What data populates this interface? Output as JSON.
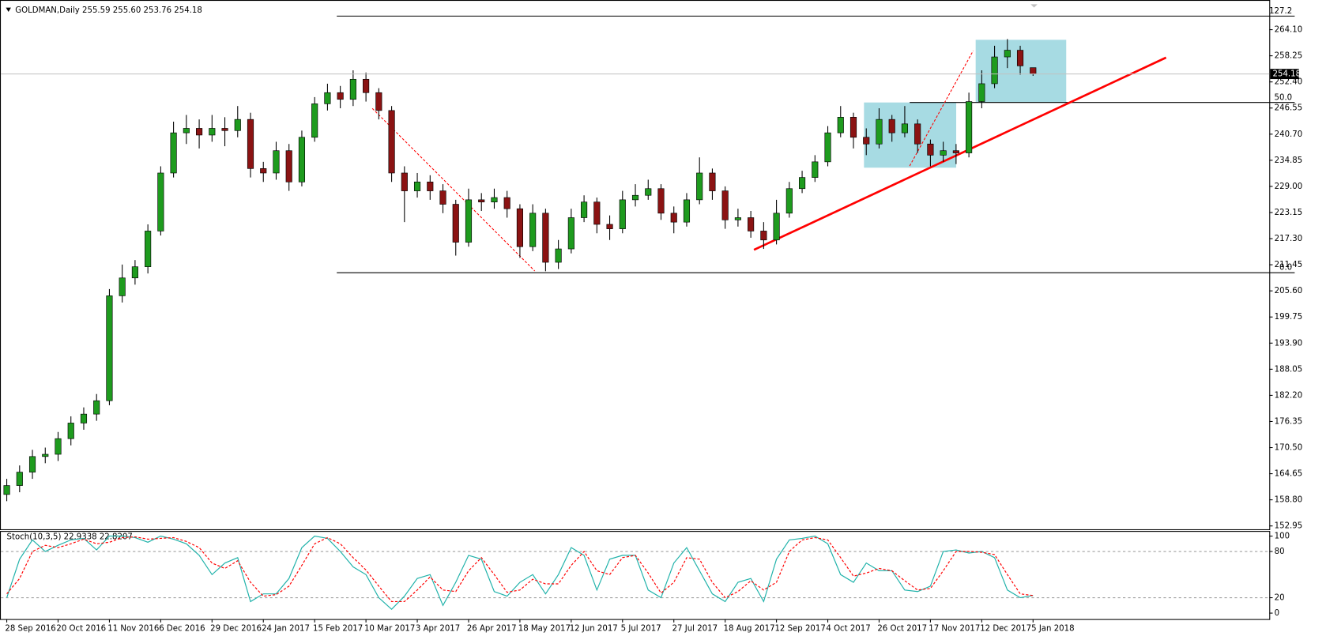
{
  "chart_data": [
    {
      "type": "candlestick",
      "title": "GOLDMAN,Daily  255.59 255.60 253.76 254.18",
      "categories": [
        "28 Sep 2016",
        null,
        null,
        null,
        "20 Oct 2016",
        null,
        null,
        null,
        "11 Nov 2016",
        null,
        null,
        null,
        "6 Dec 2016",
        null,
        null,
        null,
        "29 Dec 2016",
        null,
        null,
        null,
        "24 Jan 2017",
        null,
        null,
        null,
        "15 Feb 2017",
        null,
        null,
        null,
        "10 Mar 2017",
        null,
        null,
        null,
        "3 Apr 2017",
        null,
        null,
        null,
        "26 Apr 2017",
        null,
        null,
        null,
        "18 May 2017",
        null,
        null,
        null,
        "12 Jun 2017",
        null,
        null,
        null,
        "5 Jul 2017",
        null,
        null,
        null,
        "27 Jul 2017",
        null,
        null,
        null,
        "18 Aug 2017",
        null,
        null,
        null,
        "12 Sep 2017",
        null,
        null,
        null,
        "4 Oct 2017",
        null,
        null,
        null,
        "26 Oct 2017",
        null,
        null,
        null,
        "17 Nov 2017",
        null,
        null,
        null,
        "12 Dec 2017",
        null,
        null,
        null,
        "5 Jan 2018"
      ],
      "open": [
        160,
        162,
        165,
        168.5,
        169,
        172.5,
        176,
        178,
        181,
        204.5,
        208.5,
        211,
        219,
        232,
        241,
        242,
        240.5,
        242,
        241.5,
        244,
        233,
        232,
        237,
        230,
        240,
        247.5,
        250,
        248.5,
        253,
        250,
        246,
        232,
        228,
        230,
        228,
        225,
        216.5,
        226,
        225.5,
        226.5,
        224,
        215.5,
        223,
        212,
        215,
        222,
        225.5,
        220.5,
        219.5,
        226,
        227,
        228.5,
        223,
        221,
        226,
        232,
        228,
        221.5,
        222,
        219,
        217,
        223,
        228.5,
        231,
        234.5,
        241,
        244.5,
        240,
        238.5,
        244,
        241,
        243,
        238.5,
        236,
        237,
        236.5,
        248,
        252,
        258,
        259.5,
        255.59
      ],
      "high": [
        163.5,
        166.5,
        170,
        170.5,
        174,
        177.5,
        179.5,
        182.5,
        206,
        211.5,
        212.5,
        220.5,
        233.5,
        243.5,
        245,
        244,
        245,
        244.5,
        247,
        245.5,
        234.5,
        239,
        238.5,
        241.5,
        249,
        252,
        251.5,
        255,
        254.5,
        251,
        247,
        233.5,
        232,
        231.5,
        229.5,
        226,
        228.5,
        227.5,
        228.5,
        228,
        225,
        225,
        224,
        217,
        224,
        227,
        226.5,
        222.5,
        228,
        229.5,
        230.5,
        229.5,
        224.5,
        227.5,
        235.5,
        233,
        229,
        224,
        223.5,
        221,
        226,
        230,
        232.5,
        236,
        242.5,
        247,
        245.5,
        242,
        246.5,
        245,
        247,
        244,
        239.5,
        239,
        238.5,
        250,
        255,
        260.5,
        262,
        260.5,
        255.6
      ],
      "low": [
        158.5,
        160.5,
        163.5,
        167,
        167.5,
        171,
        174.5,
        176.5,
        180,
        203,
        207,
        209.5,
        218,
        231,
        238.5,
        237.5,
        239,
        238,
        240,
        231,
        230,
        230.5,
        228,
        229,
        239,
        246,
        246.5,
        247,
        248,
        244,
        230,
        221,
        226.5,
        226,
        223,
        213.5,
        215.5,
        223.5,
        224,
        222,
        213,
        214.5,
        210,
        210.5,
        214,
        221,
        218.5,
        217,
        218.5,
        224.5,
        226,
        221.5,
        218.5,
        220,
        225,
        226,
        219.5,
        220,
        217.5,
        215,
        216,
        222,
        227.5,
        230,
        233.5,
        240,
        237.5,
        236,
        237.5,
        239,
        240,
        236.5,
        233.5,
        234.5,
        234,
        235.5,
        246.5,
        251,
        255.5,
        254,
        253.76
      ],
      "close": [
        162,
        165,
        168.5,
        169,
        172.5,
        176,
        178,
        181,
        204.5,
        208.5,
        211,
        219,
        232,
        241,
        242,
        240.5,
        242,
        241.5,
        244,
        233,
        232,
        237,
        230,
        240,
        247.5,
        250,
        248.5,
        253,
        250,
        246,
        232,
        228,
        230,
        228,
        225,
        216.5,
        226,
        225.5,
        226.5,
        224,
        215.5,
        223,
        212,
        215,
        222,
        225.5,
        220.5,
        219.5,
        226,
        227,
        228.5,
        223,
        221,
        226,
        232,
        228,
        221.5,
        222,
        219,
        217,
        223,
        228.5,
        231,
        234.5,
        241,
        244.5,
        240,
        238.5,
        244,
        241,
        243,
        238.5,
        236,
        237,
        236.5,
        248,
        252,
        258,
        259.5,
        256,
        254.18
      ],
      "up_color": "#1e9b1e",
      "down_color": "#8b1313",
      "wick_color": "#000000",
      "ylim": [
        152.2,
        269.8
      ],
      "yticks": [
        {
          "value": 264.1,
          "label": "264.10"
        },
        258.25,
        {
          "value": 252.4,
          "label": "252.40"
        },
        246.55,
        {
          "value": 240.7,
          "label": "240.70"
        },
        234.85,
        {
          "value": 229,
          "label": "229.00"
        },
        223.15,
        {
          "value": 217.3,
          "label": "217.30"
        },
        211.45,
        {
          "value": 205.6,
          "label": "205.60"
        },
        199.75,
        {
          "value": 193.9,
          "label": "193.90"
        },
        188.05,
        {
          "value": 182.2,
          "label": "182.20"
        },
        176.35,
        {
          "value": 170.5,
          "label": "170.50"
        },
        164.65,
        {
          "value": 158.8,
          "label": "158.80"
        },
        152.95
      ],
      "annotations": [
        "127.2",
        "50.0",
        "0.0"
      ]
    },
    {
      "type": "line",
      "title": "Stoch(10,3,5) 22.9338 22.8207",
      "series": [
        {
          "color": "#20b2aa",
          "values": [
            20,
            70,
            95,
            80,
            88,
            95,
            97,
            82,
            100,
            100,
            98,
            92,
            100,
            96,
            90,
            75,
            50,
            65,
            72,
            15,
            25,
            25,
            45,
            85,
            100,
            97,
            80,
            60,
            50,
            20,
            5,
            22,
            45,
            50,
            10,
            40,
            75,
            70,
            28,
            22,
            40,
            50,
            25,
            50,
            85,
            75,
            30,
            70,
            75,
            75,
            30,
            20,
            65,
            85,
            55,
            25,
            15,
            40,
            45,
            15,
            70,
            95,
            97,
            100,
            90,
            50,
            40,
            65,
            55,
            55,
            30,
            28,
            35,
            80,
            82,
            78,
            80,
            72,
            30,
            20,
            22.9338
          ]
        },
        {
          "color": "#ff0000",
          "dashed": true,
          "values": [
            25,
            45,
            80,
            88,
            85,
            90,
            96,
            90,
            92,
            98,
            99,
            96,
            97,
            98,
            93,
            85,
            65,
            58,
            68,
            40,
            22,
            24,
            35,
            62,
            90,
            98,
            90,
            72,
            56,
            35,
            15,
            15,
            30,
            47,
            30,
            28,
            55,
            72,
            50,
            27,
            30,
            44,
            38,
            38,
            62,
            80,
            55,
            50,
            72,
            75,
            52,
            26,
            40,
            72,
            70,
            40,
            20,
            28,
            42,
            30,
            40,
            80,
            95,
            98,
            95,
            72,
            48,
            52,
            58,
            55,
            42,
            30,
            32,
            55,
            80,
            80,
            79,
            76,
            50,
            25,
            22.8207
          ]
        }
      ],
      "ylim": [
        -7.7,
        106.6
      ],
      "yticks": [
        100,
        80,
        20,
        0
      ],
      "levels": [
        80,
        20
      ]
    }
  ]
}
